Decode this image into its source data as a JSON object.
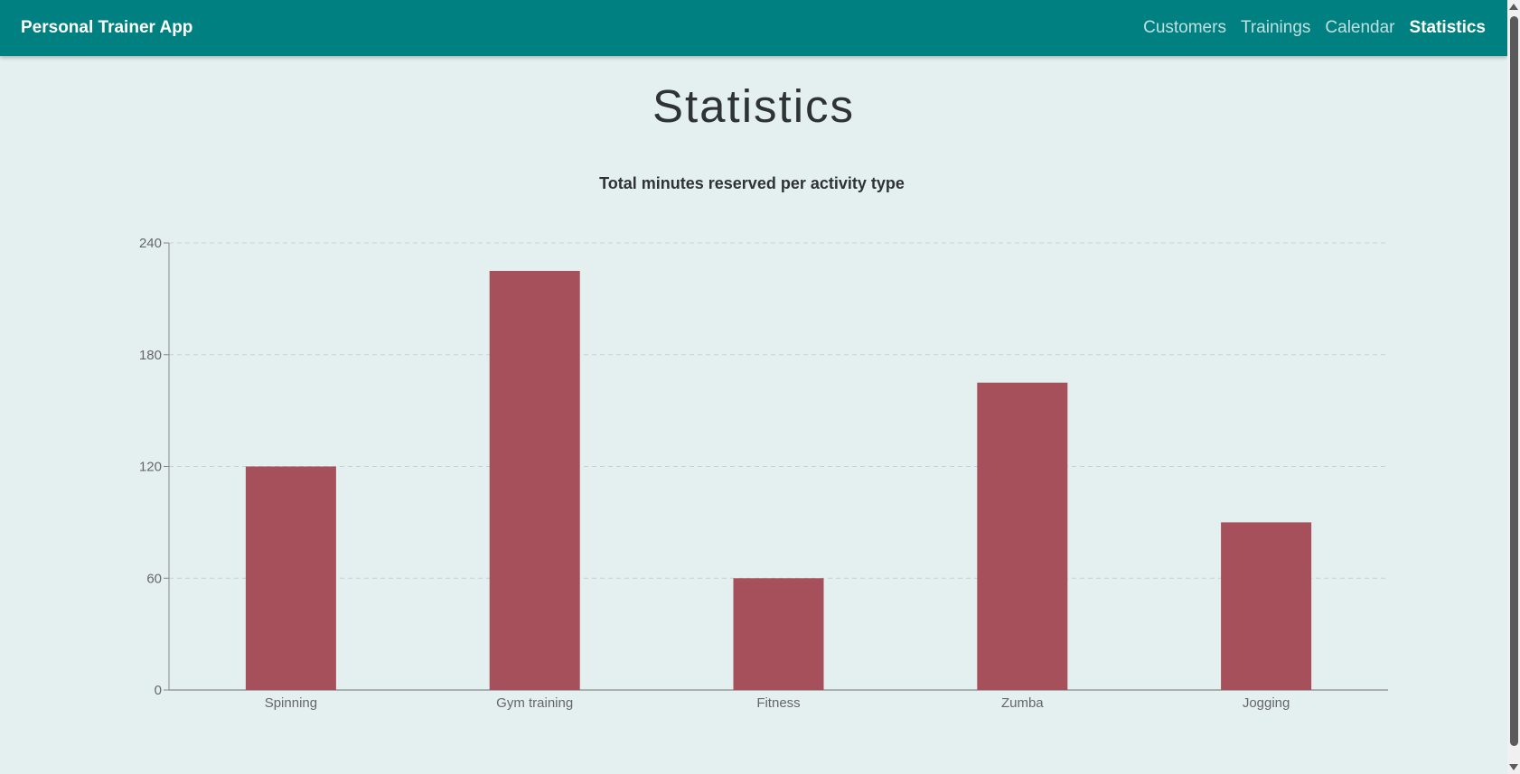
{
  "app": {
    "title": "Personal Trainer App"
  },
  "nav": {
    "items": [
      {
        "label": "Customers",
        "active": false
      },
      {
        "label": "Trainings",
        "active": false
      },
      {
        "label": "Calendar",
        "active": false
      },
      {
        "label": "Statistics",
        "active": true
      }
    ]
  },
  "page": {
    "title": "Statistics"
  },
  "colors": {
    "appbar": "#008080",
    "bar": "#a6505c",
    "background": "#e4f0f0"
  },
  "chart_data": {
    "type": "bar",
    "title": "Total minutes reserved per activity type",
    "xlabel": "",
    "ylabel": "",
    "categories": [
      "Spinning",
      "Gym training",
      "Fitness",
      "Zumba",
      "Jogging"
    ],
    "values": [
      120,
      225,
      60,
      165,
      90
    ],
    "ylim": [
      0,
      240
    ],
    "yticks": [
      0,
      60,
      120,
      180,
      240
    ],
    "grid": true,
    "legend": "none"
  }
}
